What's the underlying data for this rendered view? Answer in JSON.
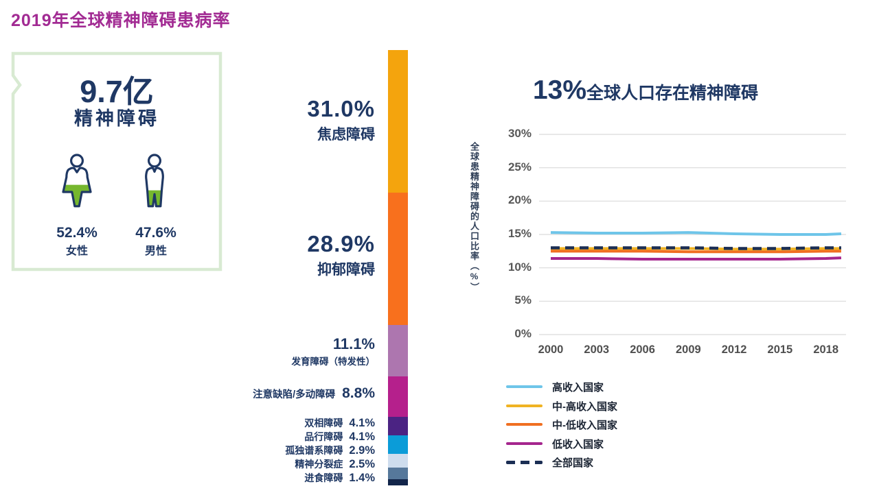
{
  "page": {
    "title": "2019年全球精神障碍患病率",
    "title_color": "#A22B93",
    "background": "#FFFFFF"
  },
  "stat_box": {
    "headline": "9.7亿",
    "subtitle": "精神障碍",
    "border_color": "#D8EAD2",
    "icon_colors": {
      "outline": "#1F3864",
      "fill": "#76B72E"
    },
    "groups": [
      {
        "value": "52.4%",
        "label": "女性"
      },
      {
        "value": "47.6%",
        "label": "男性"
      }
    ]
  },
  "chart_data": [
    {
      "type": "bar",
      "orientation": "vertical-stacked",
      "categories": [
        "焦虑障碍",
        "抑郁障碍",
        "发育障碍（特发性）",
        "注意缺陷/多动障碍",
        "双相障碍",
        "品行障碍",
        "孤独谱系障碍",
        "精神分裂症",
        "进食障碍"
      ],
      "values": [
        31.0,
        28.9,
        11.1,
        8.8,
        4.1,
        4.1,
        2.9,
        2.5,
        1.4
      ],
      "value_labels": [
        "31.0%",
        "28.9%",
        "11.1%",
        "8.8%",
        "4.1%",
        "4.1%",
        "2.9%",
        "2.5%",
        "1.4%"
      ],
      "colors": [
        "#F4A40D",
        "#F8701D",
        "#AD76AF",
        "#B5208C",
        "#4B2383",
        "#0B9CD8",
        "#CEDDEE",
        "#56789B",
        "#12254A"
      ],
      "text_color": "#1F3864"
    },
    {
      "type": "line",
      "title": "13%全球人口存在精神障碍",
      "title_big": "13%",
      "title_rest": "全球人口存在精神障碍",
      "ylabel": "全球患精神障碍的人口比率（%）",
      "ylim": [
        0,
        30
      ],
      "ytick_labels": [
        "30%",
        "25%",
        "20%",
        "15%",
        "10%",
        "5%",
        "0%"
      ],
      "x": [
        2000,
        2003,
        2006,
        2009,
        2012,
        2015,
        2018,
        2019
      ],
      "x_tick_labels": [
        "2000",
        "2003",
        "2006",
        "2009",
        "2012",
        "2015",
        "2018"
      ],
      "grid": true,
      "grid_color": "#D9D9D9",
      "legend_position": "bottom-left",
      "series": [
        {
          "name": "高收入国家",
          "color": "#6EC5E9",
          "style": "solid",
          "values": [
            15.3,
            15.2,
            15.2,
            15.3,
            15.1,
            15.0,
            15.0,
            15.1
          ]
        },
        {
          "name": "中-高收入国家",
          "color": "#F0B323",
          "style": "solid",
          "values": [
            12.9,
            12.9,
            12.9,
            12.9,
            12.8,
            12.8,
            12.9,
            12.9
          ]
        },
        {
          "name": "中-低收入国家",
          "color": "#F06F21",
          "style": "solid",
          "values": [
            12.5,
            12.5,
            12.5,
            12.4,
            12.4,
            12.4,
            12.5,
            12.5
          ]
        },
        {
          "name": "低收入国家",
          "color": "#A5268E",
          "style": "solid",
          "values": [
            11.4,
            11.4,
            11.3,
            11.3,
            11.3,
            11.3,
            11.4,
            11.5
          ]
        },
        {
          "name": "全部国家",
          "color": "#1B2E54",
          "style": "dashed",
          "values": [
            13.0,
            13.0,
            13.0,
            13.0,
            12.9,
            12.9,
            13.0,
            13.0
          ]
        }
      ]
    }
  ]
}
